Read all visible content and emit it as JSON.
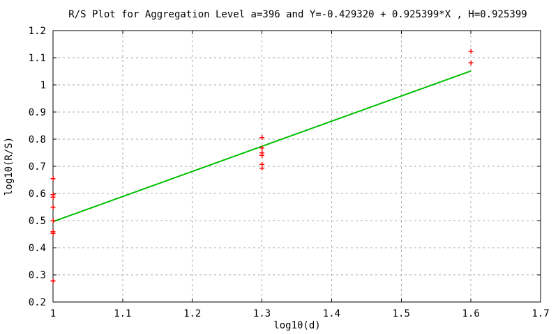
{
  "title": "R/S Plot for Aggregation Level a=396 and Y=-0.429320 + 0.925399*X , H=0.925399",
  "chart_data": {
    "type": "scatter",
    "title": "R/S Plot for Aggregation Level a=396 and Y=-0.429320 + 0.925399*X , H=0.925399",
    "xlabel": "log10(d)",
    "ylabel": "log10(R/S)",
    "xlim": [
      1.0,
      1.7
    ],
    "ylim": [
      0.2,
      1.2
    ],
    "x_ticks": [
      [
        1.0,
        "1"
      ],
      [
        1.1,
        "1.1"
      ],
      [
        1.2,
        "1.2"
      ],
      [
        1.3,
        "1.3"
      ],
      [
        1.4,
        "1.4"
      ],
      [
        1.5,
        "1.5"
      ],
      [
        1.6,
        "1.6"
      ],
      [
        1.7,
        "1.7"
      ]
    ],
    "y_ticks": [
      [
        0.2,
        "0.2"
      ],
      [
        0.3,
        "0.3"
      ],
      [
        0.4,
        "0.4"
      ],
      [
        0.5,
        "0.5"
      ],
      [
        0.6,
        "0.6"
      ],
      [
        0.7,
        "0.7"
      ],
      [
        0.8,
        "0.8"
      ],
      [
        0.9,
        "0.9"
      ],
      [
        1.0,
        "1"
      ],
      [
        1.1,
        "1.1"
      ],
      [
        1.2,
        "1.2"
      ]
    ],
    "grid": true,
    "legend_position": "none",
    "aggregation_level_a": "396",
    "hurst_H": "0.925399",
    "grid_color": "#aaaaaa",
    "border_color": "#000000",
    "background": "#ffffff",
    "series": [
      {
        "name": "rs-data-points",
        "type": "scatter",
        "marker": "plus",
        "color": "#ff0000",
        "points": [
          [
            1.0,
            0.655
          ],
          [
            1.0,
            0.595
          ],
          [
            1.0,
            0.586
          ],
          [
            1.0,
            0.549
          ],
          [
            1.0,
            0.5
          ],
          [
            1.0,
            0.46
          ],
          [
            1.0,
            0.453
          ],
          [
            1.0,
            0.277
          ],
          [
            1.3,
            0.806
          ],
          [
            1.3,
            0.767
          ],
          [
            1.3,
            0.749
          ],
          [
            1.3,
            0.74
          ],
          [
            1.3,
            0.707
          ],
          [
            1.3,
            0.693
          ],
          [
            1.6,
            1.124
          ],
          [
            1.6,
            1.081
          ]
        ]
      },
      {
        "name": "regression-fit-line",
        "type": "line",
        "color": "#00c000",
        "equation": "Y=-0.429320 + 0.925399*X",
        "intercept": -0.42932,
        "slope": 0.925399,
        "x_range": [
          1.0,
          1.6
        ],
        "points": [
          [
            1.0,
            0.496079
          ],
          [
            1.6,
            1.051318
          ]
        ]
      }
    ]
  }
}
